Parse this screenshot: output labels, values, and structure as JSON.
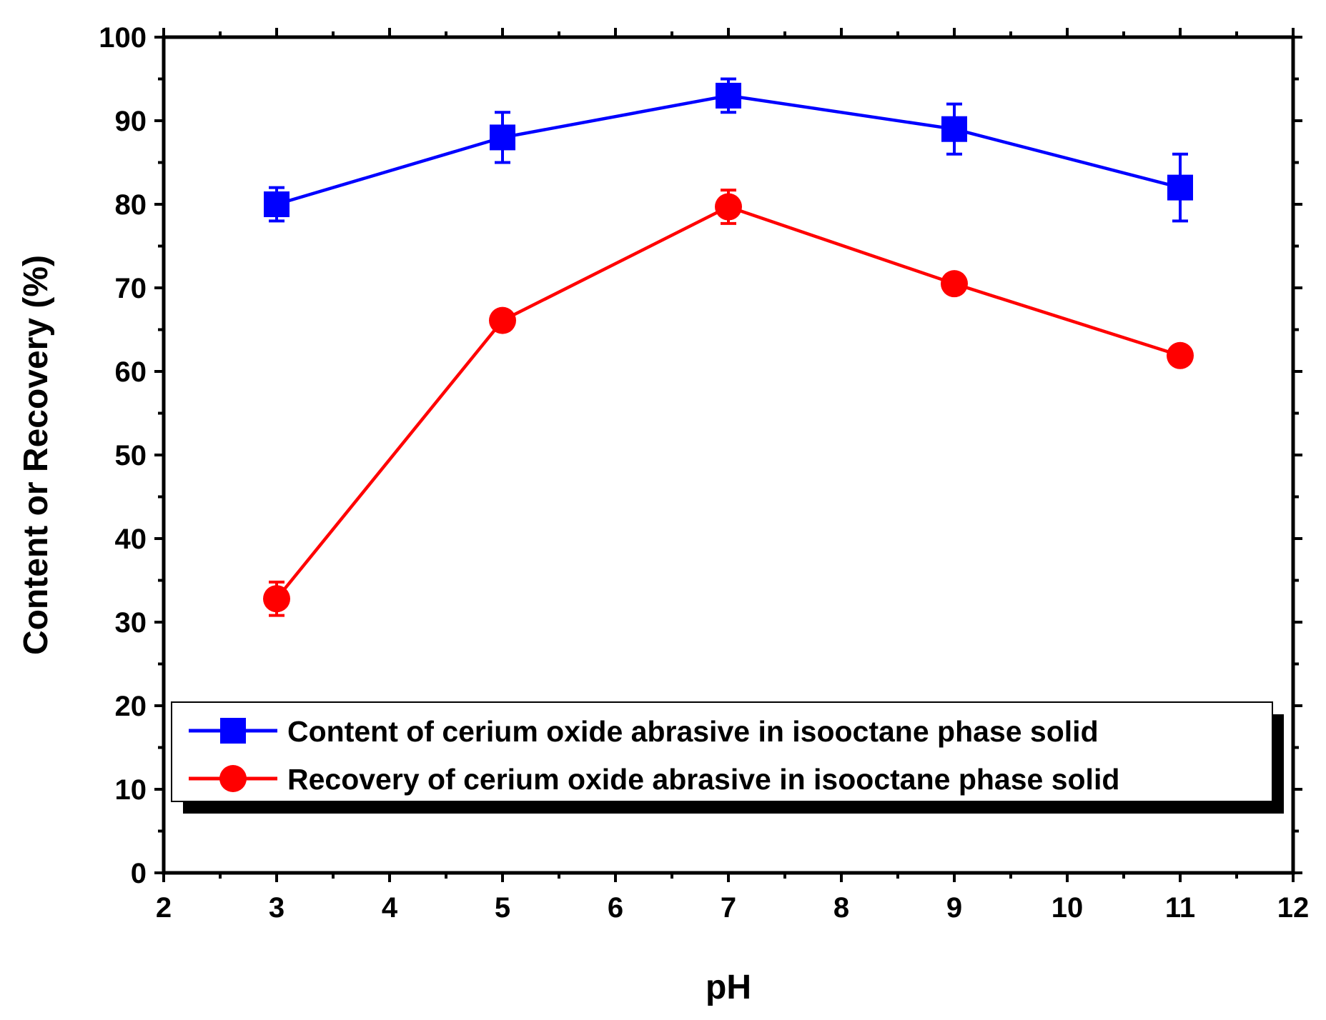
{
  "chart_data": {
    "type": "line",
    "title": "",
    "xlabel": "pH",
    "ylabel": "Content or Recovery (%)",
    "xlim": [
      2,
      12
    ],
    "ylim": [
      0,
      100
    ],
    "xticks": [
      2,
      3,
      4,
      5,
      6,
      7,
      8,
      9,
      10,
      11,
      12
    ],
    "yticks": [
      0,
      10,
      20,
      30,
      40,
      50,
      60,
      70,
      80,
      90,
      100
    ],
    "x_minor_step": 0.5,
    "y_minor_step": 5,
    "grid": false,
    "legend_position": "lower-right",
    "series": [
      {
        "name": "Content of cerium oxide abrasive in isooctane phase solid",
        "color": "#0000ff",
        "marker": "square",
        "x": [
          3,
          5,
          7,
          9,
          11
        ],
        "y": [
          80,
          88,
          93,
          89,
          82
        ],
        "error": [
          2,
          3,
          2,
          3,
          4
        ]
      },
      {
        "name": "Recovery of cerium oxide abrasive in isooctane phase solid",
        "color": "#ff0000",
        "marker": "circle",
        "x": [
          3,
          5,
          7,
          9,
          11
        ],
        "y": [
          32.8,
          66.1,
          79.7,
          70.5,
          61.9
        ],
        "error": [
          2,
          0,
          2,
          0,
          0
        ]
      }
    ]
  }
}
